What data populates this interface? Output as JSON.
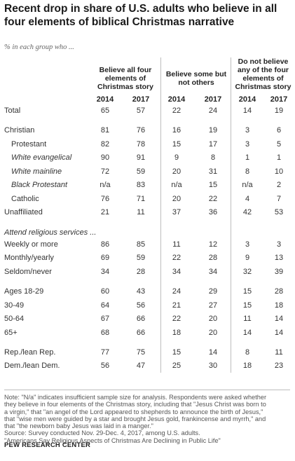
{
  "header": {
    "title_line1": "Recent drop in share of U.S. adults who believe in all",
    "title_line2": "four elements of biblical Christmas narrative",
    "subtitle": "% in each group who ..."
  },
  "chart_data": {
    "type": "table",
    "groups": [
      {
        "lines": [
          "Believe all four",
          "elements of",
          "Christmas story"
        ]
      },
      {
        "lines": [
          "Believe some but",
          "not others"
        ]
      },
      {
        "lines": [
          "Do not believe",
          "any of the four",
          "elements of",
          "Christmas story"
        ]
      }
    ],
    "years": [
      "2014",
      "2017",
      "2014",
      "2017",
      "2014",
      "2017"
    ],
    "section_labels": [
      "Attend religious services ..."
    ],
    "rows": [
      {
        "label": "Total",
        "values": [
          "65",
          "57",
          "22",
          "24",
          "14",
          "19"
        ]
      },
      {
        "label": "Christian",
        "values": [
          "81",
          "76",
          "16",
          "19",
          "3",
          "6"
        ]
      },
      {
        "label": "Protestant",
        "values": [
          "82",
          "78",
          "15",
          "17",
          "3",
          "5"
        ]
      },
      {
        "label": "White evangelical",
        "values": [
          "90",
          "91",
          "9",
          "8",
          "1",
          "1"
        ]
      },
      {
        "label": "White mainline",
        "values": [
          "72",
          "59",
          "20",
          "31",
          "8",
          "10"
        ]
      },
      {
        "label": "Black Protestant",
        "values": [
          "n/a",
          "83",
          "n/a",
          "15",
          "n/a",
          "2"
        ]
      },
      {
        "label": "Catholic",
        "values": [
          "76",
          "71",
          "20",
          "22",
          "4",
          "7"
        ]
      },
      {
        "label": "Unaffiliated",
        "values": [
          "21",
          "11",
          "37",
          "36",
          "42",
          "53"
        ]
      },
      {
        "label": "Weekly or more",
        "values": [
          "86",
          "85",
          "11",
          "12",
          "3",
          "3"
        ]
      },
      {
        "label": "Monthly/yearly",
        "values": [
          "69",
          "59",
          "22",
          "28",
          "9",
          "13"
        ]
      },
      {
        "label": "Seldom/never",
        "values": [
          "34",
          "28",
          "34",
          "34",
          "32",
          "39"
        ]
      },
      {
        "label": "Ages 18-29",
        "values": [
          "60",
          "43",
          "24",
          "29",
          "15",
          "28"
        ]
      },
      {
        "label": "30-49",
        "values": [
          "64",
          "56",
          "21",
          "27",
          "15",
          "18"
        ]
      },
      {
        "label": "50-64",
        "values": [
          "67",
          "66",
          "22",
          "20",
          "11",
          "14"
        ]
      },
      {
        "label": "65+",
        "values": [
          "68",
          "66",
          "18",
          "20",
          "14",
          "14"
        ]
      },
      {
        "label": "Rep./lean Rep.",
        "values": [
          "77",
          "75",
          "15",
          "14",
          "8",
          "11"
        ]
      },
      {
        "label": "Dem./lean Dem.",
        "values": [
          "56",
          "47",
          "25",
          "30",
          "18",
          "23"
        ]
      }
    ]
  },
  "notes": {
    "lines": [
      "Note: \"N/a\" indicates insufficient sample size for analysis. Respondents were asked whether",
      "they believe in four elements of the Christmas story, including that \"Jesus Christ was born to",
      "a virgin,\" that \"an angel of the Lord appeared to shepherds to announce the birth of Jesus,\"",
      "that \"wise men were guided by a star and brought Jesus gold, frankincense and myrrh,\" and",
      "that \"the newborn baby Jesus was laid in a manger.\"",
      "Source: Survey conducted Nov. 29-Dec. 4, 2017, among U.S. adults.",
      "\"Americans Say Religious Aspects of Christmas Are Declining in Public Life\""
    ],
    "brand": "PEW RESEARCH CENTER"
  },
  "colors": {
    "text": "#333333",
    "rule": "#bdbdbd",
    "title": "#1a1a1a"
  }
}
